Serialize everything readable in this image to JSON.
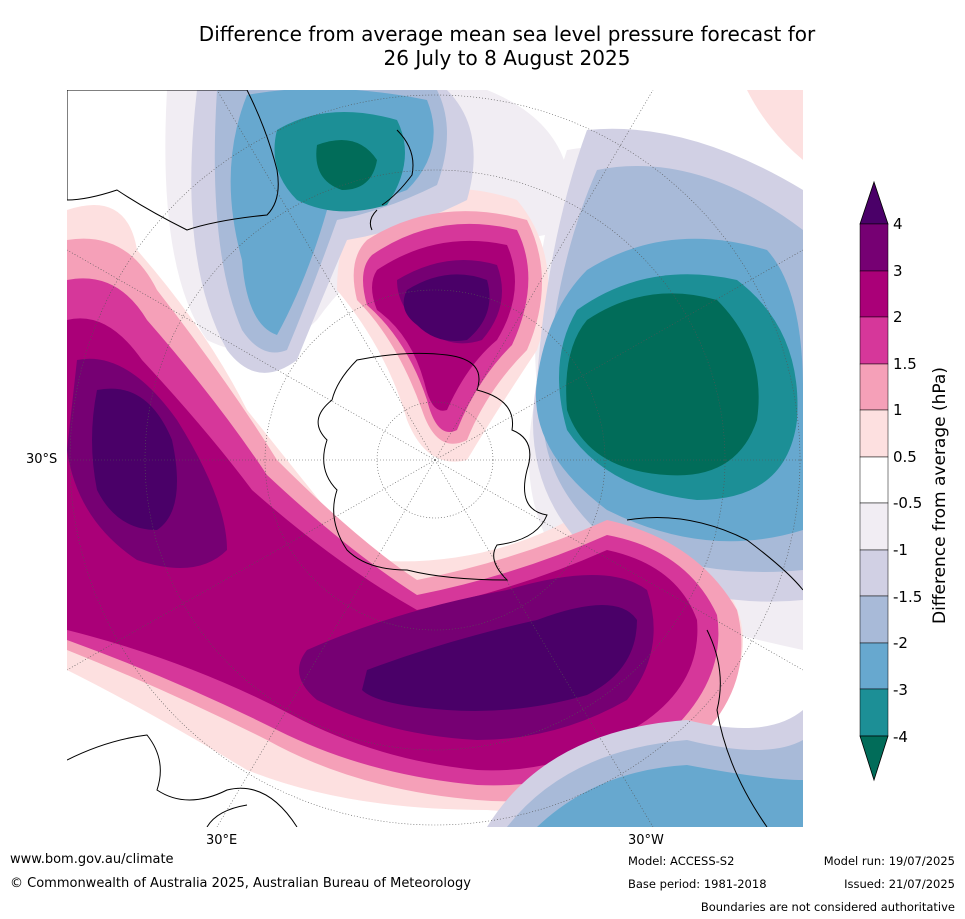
{
  "title": {
    "line1": "Difference from average mean sea level pressure forecast for",
    "line2": "26 July to 8 August 2025"
  },
  "map": {
    "lat_label": "30°S",
    "lon_label_left": "30°E",
    "lon_label_right": "30°W",
    "colors": {
      "p4": "#4a0068",
      "p3": "#760073",
      "p2": "#aa0078",
      "p15": "#d6379a",
      "p1": "#f5a0b8",
      "p05": "#fde0e0",
      "zero": "#ffffff",
      "n05": "#f1edf3",
      "n1": "#d1d0e4",
      "n15": "#a8bad8",
      "n2": "#67a8cf",
      "n3": "#1c8f96",
      "n4": "#016c59"
    }
  },
  "colorbar": {
    "label": "Difference from average (hPa)",
    "ticks": [
      "4",
      "3",
      "2",
      "1.5",
      "1",
      "0.5",
      "-0.5",
      "-1",
      "-1.5",
      "-2",
      "-3",
      "-4"
    ]
  },
  "footer": {
    "website": "www.bom.gov.au/climate",
    "copyright": "© Commonwealth of Australia 2025, Australian Bureau of Meteorology",
    "model": "Model: ACCESS-S2",
    "base_period": "Base period: 1981-2018",
    "model_run": "Model run: 19/07/2025",
    "issued": "Issued: 21/07/2025",
    "boundaries": "Boundaries are not considered authoritative"
  }
}
